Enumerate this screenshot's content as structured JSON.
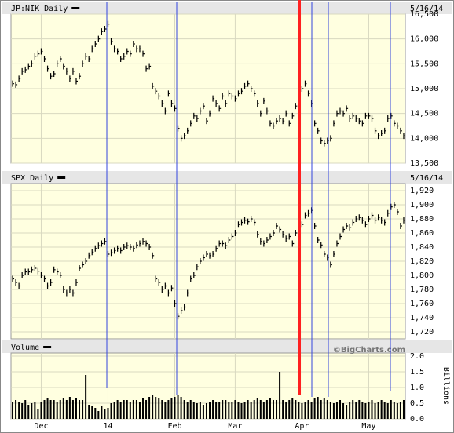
{
  "chart_data": [
    {
      "type": "price",
      "title": "JP:NIK Daily",
      "date": "5/16/14",
      "color": "#000000",
      "values": [
        15100,
        15080,
        15200,
        15350,
        15380,
        15450,
        15500,
        15650,
        15700,
        15750,
        15600,
        15400,
        15250,
        15300,
        15500,
        15600,
        15450,
        15350,
        15200,
        15350,
        15150,
        15250,
        15500,
        15650,
        15600,
        15800,
        15900,
        16000,
        16150,
        16200,
        16300,
        15950,
        15800,
        15750,
        15600,
        15650,
        15750,
        15700,
        15900,
        15800,
        15800,
        15700,
        15400,
        15450,
        15050,
        14950,
        14850,
        14700,
        14550,
        14900,
        14700,
        14600,
        14200,
        14000,
        14050,
        14150,
        14300,
        14450,
        14400,
        14550,
        14650,
        14350,
        14500,
        14800,
        14700,
        14600,
        14850,
        14700,
        14900,
        14850,
        14800,
        14900,
        14950,
        15050,
        15100,
        15000,
        14900,
        14700,
        14500,
        14750,
        14550,
        14300,
        14250,
        14350,
        14400,
        14350,
        14500,
        14300,
        14450,
        14650,
        14800,
        15000,
        15100,
        14900,
        14700,
        14300,
        14150,
        13950,
        13900,
        13950,
        14000,
        14300,
        14500,
        14550,
        14500,
        14600,
        14400,
        14450,
        14400,
        14350,
        14300,
        14450,
        14450,
        14400,
        14150,
        14050,
        14100,
        14150,
        14400,
        14450,
        14300,
        14250,
        14150,
        14050
      ],
      "ylim": [
        13500,
        16500
      ],
      "yticks": [
        {
          "value": 13500,
          "label": "13,500"
        },
        {
          "value": 14000,
          "label": "14,000"
        },
        {
          "value": 14500,
          "label": "14,500"
        },
        {
          "value": 15000,
          "label": "15,000"
        },
        {
          "value": 15500,
          "label": "15,500"
        },
        {
          "value": 16000,
          "label": "16,000"
        },
        {
          "value": 16500,
          "label": "16,500"
        }
      ]
    },
    {
      "type": "price",
      "title": "SPX Daily",
      "date": "5/16/14",
      "color": "#000000",
      "values": [
        1795,
        1790,
        1785,
        1800,
        1805,
        1805,
        1808,
        1810,
        1806,
        1800,
        1795,
        1785,
        1790,
        1808,
        1805,
        1800,
        1780,
        1775,
        1780,
        1775,
        1790,
        1810,
        1815,
        1820,
        1828,
        1833,
        1838,
        1842,
        1845,
        1848,
        1830,
        1832,
        1835,
        1838,
        1835,
        1840,
        1842,
        1840,
        1838,
        1843,
        1845,
        1848,
        1845,
        1840,
        1828,
        1795,
        1790,
        1780,
        1785,
        1775,
        1782,
        1760,
        1742,
        1750,
        1755,
        1775,
        1795,
        1800,
        1812,
        1820,
        1825,
        1830,
        1828,
        1830,
        1838,
        1845,
        1845,
        1842,
        1850,
        1855,
        1860,
        1872,
        1875,
        1878,
        1876,
        1880,
        1875,
        1858,
        1848,
        1845,
        1850,
        1855,
        1860,
        1870,
        1865,
        1858,
        1852,
        1855,
        1845,
        1860,
        1870,
        1872,
        1885,
        1888,
        1892,
        1870,
        1850,
        1843,
        1830,
        1825,
        1815,
        1830,
        1845,
        1855,
        1865,
        1870,
        1868,
        1875,
        1880,
        1882,
        1878,
        1872,
        1880,
        1885,
        1878,
        1882,
        1878,
        1875,
        1888,
        1897,
        1900,
        1890,
        1870,
        1878
      ],
      "ylim": [
        1710,
        1930
      ],
      "yticks": [
        {
          "value": 1720,
          "label": "1,720"
        },
        {
          "value": 1740,
          "label": "1,740"
        },
        {
          "value": 1760,
          "label": "1,760"
        },
        {
          "value": 1780,
          "label": "1,780"
        },
        {
          "value": 1800,
          "label": "1,800"
        },
        {
          "value": 1820,
          "label": "1,820"
        },
        {
          "value": 1840,
          "label": "1,840"
        },
        {
          "value": 1860,
          "label": "1,860"
        },
        {
          "value": 1880,
          "label": "1,880"
        },
        {
          "value": 1900,
          "label": "1,900"
        },
        {
          "value": 1920,
          "label": "1,920"
        }
      ]
    },
    {
      "type": "bar",
      "title": "Volume",
      "credit": "©BigCharts.com",
      "y_label": "Billions",
      "color": "#000000",
      "categories": [
        null,
        null,
        null,
        null,
        null,
        null,
        null,
        null,
        null,
        "Dec",
        null,
        null,
        null,
        null,
        null,
        null,
        null,
        null,
        null,
        null,
        null,
        null,
        null,
        null,
        null,
        null,
        null,
        null,
        null,
        null,
        "14",
        null,
        null,
        null,
        null,
        null,
        null,
        null,
        null,
        null,
        null,
        null,
        null,
        null,
        null,
        null,
        null,
        null,
        null,
        null,
        null,
        "Feb",
        null,
        null,
        null,
        null,
        null,
        null,
        null,
        null,
        null,
        null,
        null,
        null,
        null,
        null,
        null,
        null,
        null,
        null,
        "Mar",
        null,
        null,
        null,
        null,
        null,
        null,
        null,
        null,
        null,
        null,
        null,
        null,
        null,
        null,
        null,
        null,
        null,
        null,
        null,
        null,
        "Apr",
        null,
        null,
        null,
        null,
        null,
        null,
        null,
        null,
        null,
        null,
        null,
        null,
        null,
        null,
        null,
        null,
        null,
        null,
        null,
        null,
        "May",
        null,
        null,
        null,
        null,
        null,
        null,
        null,
        null,
        null,
        null,
        null
      ],
      "values": [
        0.55,
        0.6,
        0.55,
        0.5,
        0.6,
        0.45,
        0.5,
        0.55,
        0.3,
        0.55,
        0.6,
        0.65,
        0.6,
        0.6,
        0.55,
        0.6,
        0.65,
        0.6,
        0.7,
        0.6,
        0.65,
        0.6,
        0.6,
        1.4,
        0.45,
        0.4,
        0.35,
        0.25,
        0.4,
        0.3,
        0.35,
        0.5,
        0.55,
        0.6,
        0.55,
        0.6,
        0.6,
        0.55,
        0.6,
        0.6,
        0.55,
        0.65,
        0.6,
        0.7,
        0.75,
        0.7,
        0.65,
        0.6,
        0.55,
        0.6,
        0.65,
        0.7,
        0.75,
        0.7,
        0.6,
        0.55,
        0.6,
        0.55,
        0.5,
        0.55,
        0.45,
        0.5,
        0.55,
        0.6,
        0.55,
        0.55,
        0.6,
        0.6,
        0.55,
        0.55,
        0.6,
        0.55,
        0.5,
        0.55,
        0.6,
        0.55,
        0.6,
        0.65,
        0.6,
        0.55,
        0.6,
        0.65,
        0.6,
        0.6,
        1.5,
        0.6,
        0.55,
        0.6,
        0.65,
        0.6,
        0.55,
        0.5,
        0.55,
        0.6,
        0.55,
        0.65,
        0.7,
        0.6,
        0.65,
        0.6,
        0.55,
        0.5,
        0.55,
        0.6,
        0.5,
        0.45,
        0.55,
        0.6,
        0.55,
        0.6,
        0.55,
        0.5,
        0.55,
        0.6,
        0.5,
        0.55,
        0.6,
        0.55,
        0.5,
        0.6,
        0.55,
        0.5,
        0.55,
        0.6
      ],
      "ylim": [
        0,
        2.1
      ],
      "yticks": [
        {
          "value": 0,
          "label": "0.0"
        },
        {
          "value": 0.5,
          "label": "0.5"
        },
        {
          "value": 1,
          "label": "1.0"
        },
        {
          "value": 1.5,
          "label": "1.5"
        },
        {
          "value": 2,
          "label": "2.0"
        }
      ]
    }
  ]
}
